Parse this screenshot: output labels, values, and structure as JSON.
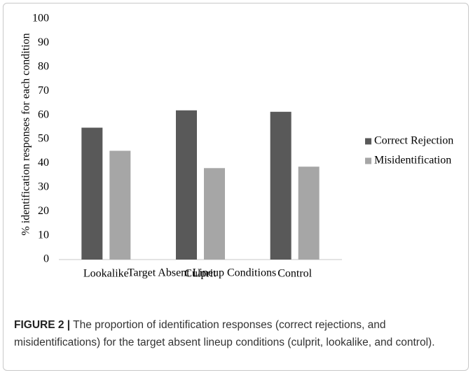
{
  "chart_data": {
    "type": "bar",
    "x_label": "Target Absent Lineup Conditions",
    "y_label": "% identification responses for each condition",
    "categories": [
      "Lookalike",
      "Culprit",
      "Control"
    ],
    "series": [
      {
        "name": "Correct Rejection",
        "color": "#595959",
        "values": [
          54.8,
          62,
          61.4
        ]
      },
      {
        "name": "Misidentification",
        "color": "#a6a6a6",
        "values": [
          45.2,
          38,
          38.6
        ]
      }
    ],
    "ylim": [
      0,
      100
    ],
    "yticks": [
      0,
      10,
      20,
      30,
      40,
      50,
      60,
      70,
      80,
      90,
      100
    ],
    "grid": false,
    "legend": "right"
  },
  "caption": {
    "label": "FIGURE 2 |",
    "text": "The proportion of identification responses (correct rejections, and misidentifications) for the target absent lineup conditions (culprit, lookalike, and control)."
  }
}
